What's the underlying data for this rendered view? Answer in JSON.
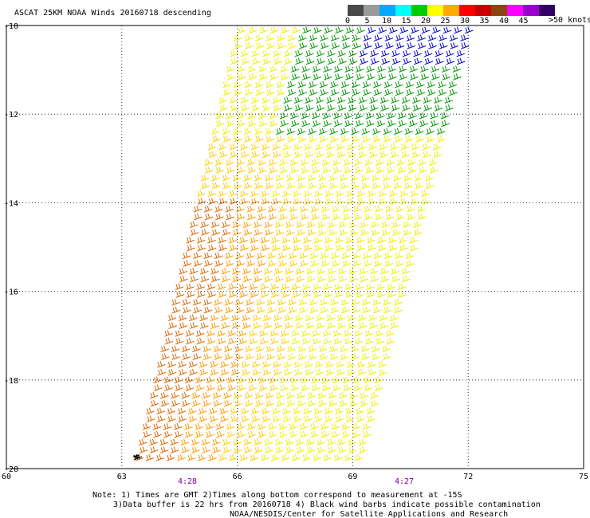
{
  "title": "ASCAT 25KM NOAA Winds 20160718 descending",
  "legend": {
    "unit_label": ">50 knots",
    "tick_labels": [
      "0",
      "5",
      "10",
      "15",
      "20",
      "25",
      "30",
      "35",
      "40",
      "45"
    ],
    "colors": [
      "#4a4a4a",
      "#9a9a9a",
      "#00aaff",
      "#00ffff",
      "#00cc00",
      "#ffff00",
      "#ffaa00",
      "#ff0000",
      "#cc0000",
      "#8b4513",
      "#ff00ff",
      "#9900cc",
      "#330066"
    ]
  },
  "axes": {
    "lat_labels": [
      "-10",
      "-12",
      "-14",
      "-16",
      "-18",
      "-20"
    ],
    "lon_labels": [
      "60",
      "63",
      "66",
      "69",
      "72",
      "75"
    ]
  },
  "pass_times": [
    "4:28",
    "4:27"
  ],
  "notes": [
    "Note: 1) Times are GMT 2)Times along bottom correspond to measurement at -15S",
    "3)Data buffer is 22 hrs from 20160718 4) Black wind barbs indicate possible contamination",
    "NOAA/NESDIS/Center for Satellite Applications and Research"
  ],
  "wind_field": {
    "colors": {
      "blue": "#0000cc",
      "green": "#009900",
      "yellow": "#eeee00",
      "gold": "#ffcc00",
      "orange": "#ff9900",
      "dark_orange": "#dd6600",
      "black": "#000000"
    }
  }
}
